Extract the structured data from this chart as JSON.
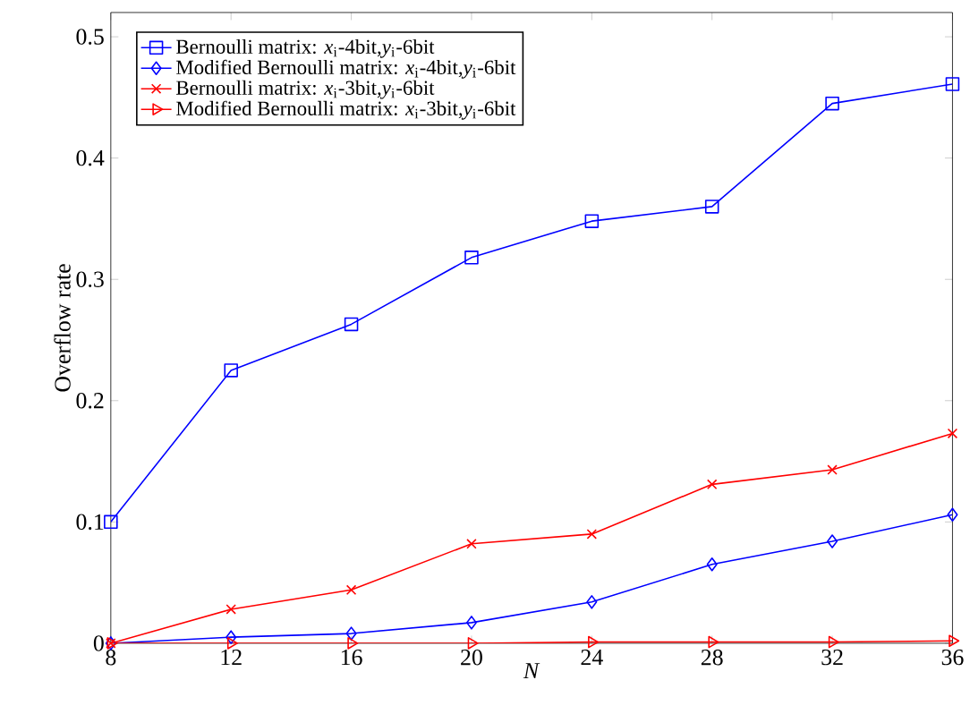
{
  "chart_data": {
    "type": "line",
    "xlabel": "*N*",
    "ylabel": "Overflow rate",
    "x": [
      8,
      12,
      16,
      20,
      24,
      28,
      32,
      36
    ],
    "series": [
      {
        "name": "Bernoulli matrix: *x*$_{i}$-4bit,*y*$_{i}$-6bit",
        "color": "#0000ff",
        "marker": "square",
        "values": [
          0.1,
          0.225,
          0.263,
          0.318,
          0.348,
          0.36,
          0.445,
          0.461
        ]
      },
      {
        "name": "Modified Bernoulli matrix: *x*$_{i}$-4bit,*y*$_{i}$-6bit",
        "color": "#0000ff",
        "marker": "diamond",
        "values": [
          0,
          0.005,
          0.008,
          0.017,
          0.034,
          0.065,
          0.084,
          0.106
        ]
      },
      {
        "name": "Bernoulli matrix: *x*$_{i}$-3bit,*y*$_{i}$-6bit",
        "color": "#ff0000",
        "marker": "cross",
        "values": [
          0,
          0.028,
          0.044,
          0.082,
          0.09,
          0.131,
          0.143,
          0.173
        ]
      },
      {
        "name": "Modified Bernoulli matrix: *x*$_{i}$-3bit,*y*$_{i}$-6bit",
        "color": "#ff0000",
        "marker": "triangle",
        "values": [
          0,
          0,
          0,
          0,
          0.001,
          0.001,
          0.001,
          0.002
        ]
      }
    ],
    "xlim": [
      8,
      36
    ],
    "xticks": [
      8,
      12,
      16,
      20,
      24,
      28,
      32,
      36
    ],
    "ylim": [
      0,
      0.52
    ],
    "yticks": [
      0,
      0.1,
      0.2,
      0.3,
      0.4,
      0.5
    ],
    "grid": false,
    "legend": "top left",
    "line_style": "solid"
  }
}
